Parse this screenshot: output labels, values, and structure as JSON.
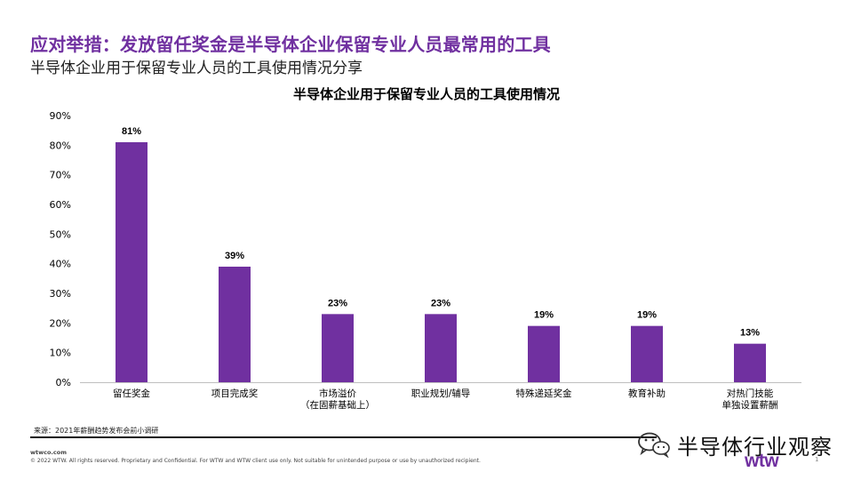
{
  "header": {
    "title": "应对举措：发放留任奖金是半导体企业保留专业人员最常用的工具",
    "subtitle": "半导体企业用于保留专业人员的工具使用情况分享"
  },
  "footer": {
    "source": "来源：2021年薪酬趋势发布会前小调研",
    "site": "wtwco.com",
    "legal": "© 2022 WTW. All rights reserved. Proprietary and Confidential. For WTW and WTW client use only. Not suitable for unintended purpose or use by unauthorized recipient.",
    "watermark": "半导体行业观察",
    "brand": "wtw",
    "page": "1"
  },
  "colors": {
    "bar": "#7030a0",
    "title": "#7030a0"
  },
  "chart_data": {
    "type": "bar",
    "title": "半导体企业用于保留专业人员的工具使用情况",
    "categories": [
      [
        "留任奖金"
      ],
      [
        "项目完成奖"
      ],
      [
        "市场溢价",
        "（在固薪基础上）"
      ],
      [
        "职业规划/辅导"
      ],
      [
        "特殊递延奖金"
      ],
      [
        "教育补助"
      ],
      [
        "对热门技能",
        "单独设置薪酬"
      ]
    ],
    "values": [
      81,
      39,
      23,
      23,
      19,
      19,
      13
    ],
    "data_labels": [
      "81%",
      "39%",
      "23%",
      "23%",
      "19%",
      "19%",
      "13%"
    ],
    "yticks": [
      "0%",
      "10%",
      "20%",
      "30%",
      "40%",
      "50%",
      "60%",
      "70%",
      "80%",
      "90%"
    ],
    "ylim": [
      0,
      90
    ],
    "ytick_step": 10,
    "xlabel": "",
    "ylabel": "",
    "grid": false,
    "legend": "none"
  }
}
